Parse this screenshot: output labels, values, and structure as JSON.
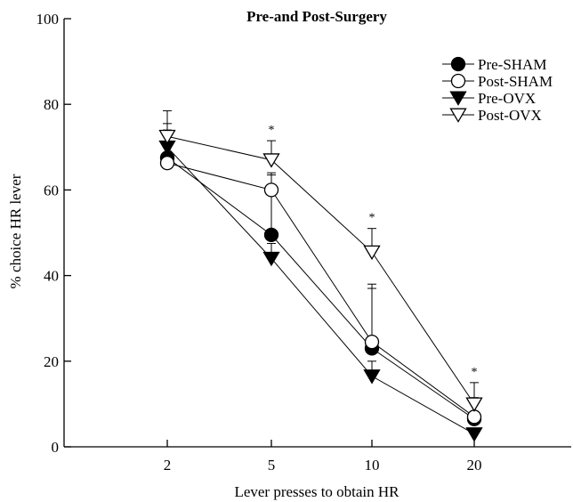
{
  "chart_data": {
    "type": "line",
    "title": "Pre-and Post-Surgery",
    "xlabel": "Lever presses to obtain HR",
    "ylabel": "% choice HR lever",
    "categories": [
      "2",
      "5",
      "10",
      "20"
    ],
    "ylim": [
      0,
      100
    ],
    "yticks": [
      0,
      20,
      40,
      60,
      80,
      100
    ],
    "legend_position": "top-right",
    "series": [
      {
        "name": "Pre-SHAM",
        "marker": "filled-circle",
        "values": [
          67.5,
          49.5,
          23.0,
          6.5
        ],
        "errors": [
          8,
          14,
          14,
          5
        ]
      },
      {
        "name": "Post-SHAM",
        "marker": "open-circle",
        "values": [
          66.3,
          60.0,
          24.5,
          7.0
        ],
        "errors": [
          4,
          4,
          13.5,
          4
        ]
      },
      {
        "name": "Pre-OVX",
        "marker": "filled-triangle",
        "values": [
          70.0,
          44.0,
          16.5,
          3.0
        ],
        "errors": [
          4,
          3.5,
          3.5,
          1
        ]
      },
      {
        "name": "Post-OVX",
        "marker": "open-triangle",
        "values": [
          72.5,
          67.0,
          45.5,
          10.0
        ],
        "errors": [
          6,
          4.5,
          5.5,
          5
        ]
      }
    ],
    "significance_marker": "*",
    "significant_categories": [
      "5",
      "10",
      "20"
    ],
    "grid": false
  }
}
